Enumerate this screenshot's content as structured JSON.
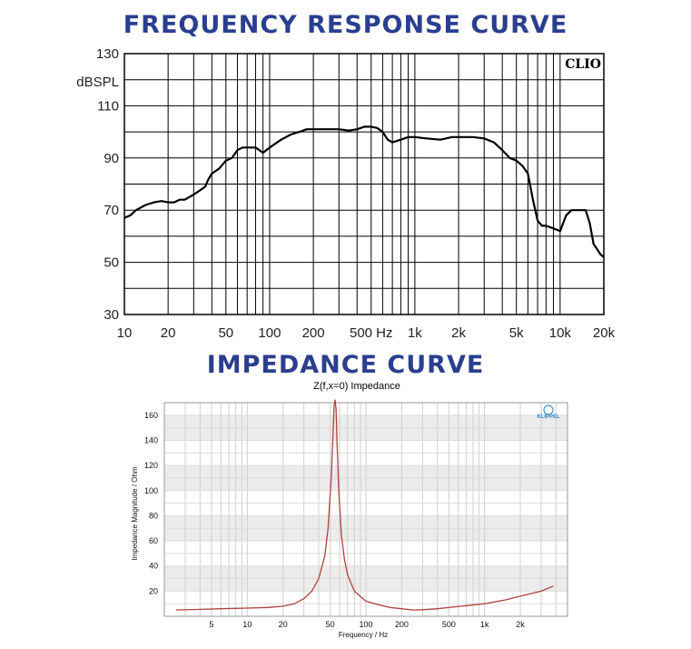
{
  "headings": {
    "frequency": "FREQUENCY RESPONSE CURVE",
    "impedance": "IMPEDANCE CURVE"
  },
  "colors": {
    "heading": "#2b3f8f",
    "freq_curve": "#000000",
    "imp_curve": "#b0413e",
    "imp_band": "#ececec"
  },
  "chart_data": [
    {
      "type": "line",
      "title": "",
      "ylabel": "dBSPL",
      "xlabel": "",
      "xscale": "log",
      "xlim": [
        10,
        20000
      ],
      "ylim": [
        30,
        130
      ],
      "grid": true,
      "badge": "CLIO",
      "x_ticks": [
        10,
        20,
        50,
        100,
        200,
        500,
        1000,
        2000,
        5000,
        10000,
        20000
      ],
      "x_tick_labels": [
        "10",
        "20",
        "50",
        "100",
        "200",
        "500 Hz",
        "1k",
        "2k",
        "5k",
        "10k",
        "20k"
      ],
      "y_ticks": [
        30,
        50,
        70,
        90,
        110,
        130
      ],
      "y_tick_labels": [
        "30",
        "50",
        "70",
        "90",
        "110",
        "130"
      ],
      "series": [
        {
          "name": "",
          "x": [
            10,
            11,
            12,
            14,
            16,
            18,
            20,
            22,
            24,
            26,
            28,
            30,
            32,
            34,
            36,
            38,
            40,
            45,
            50,
            55,
            60,
            65,
            70,
            75,
            80,
            85,
            90,
            100,
            120,
            140,
            160,
            180,
            200,
            250,
            300,
            350,
            400,
            450,
            500,
            550,
            600,
            650,
            700,
            800,
            900,
            1000,
            1200,
            1500,
            1800,
            2000,
            2500,
            3000,
            3500,
            4000,
            4500,
            5000,
            5500,
            6000,
            6500,
            7000,
            7500,
            8000,
            9000,
            10000,
            11000,
            12000,
            13000,
            14000,
            15000,
            16000,
            17000,
            18000,
            19000,
            20000
          ],
          "y": [
            67,
            68,
            70,
            72,
            73,
            73.5,
            73,
            73,
            74,
            74,
            75,
            76,
            77,
            78,
            79,
            82,
            84,
            86,
            89,
            90,
            93,
            94,
            94,
            94,
            94,
            93,
            92,
            94,
            97,
            99,
            100,
            101,
            101,
            101,
            101,
            100.5,
            101,
            102,
            102,
            101.5,
            100,
            97,
            96,
            97,
            98,
            98,
            97.5,
            97,
            98,
            98,
            98,
            97.5,
            96,
            93,
            90,
            89,
            87,
            84,
            74,
            66,
            64,
            64,
            63,
            62,
            68,
            70,
            70,
            70,
            70,
            65,
            57,
            55,
            53,
            52
          ]
        }
      ]
    },
    {
      "type": "line",
      "title": "Z(f,x=0) Impedance",
      "ylabel": "Impedance Magnitude / Ohm",
      "xlabel": "Frequency / Hz",
      "xscale": "log",
      "xlim": [
        2,
        5000
      ],
      "ylim": [
        0,
        170
      ],
      "grid": true,
      "badge": "KLIPPEL",
      "x_ticks": [
        5,
        10,
        20,
        50,
        100,
        200,
        500,
        1000,
        2000
      ],
      "x_tick_labels": [
        "5",
        "10",
        "20",
        "50",
        "100",
        "200",
        "500",
        "1k",
        "2k"
      ],
      "y_ticks": [
        20,
        40,
        60,
        80,
        100,
        120,
        140,
        160
      ],
      "y_tick_labels": [
        "20",
        "40",
        "60",
        "80",
        "100",
        "120",
        "140",
        "160"
      ],
      "series": [
        {
          "name": "",
          "x": [
            2.5,
            4,
            6,
            10,
            15,
            20,
            25,
            30,
            35,
            40,
            45,
            48,
            51,
            53,
            54,
            55,
            56,
            57,
            59,
            62,
            66,
            70,
            80,
            100,
            130,
            160,
            200,
            250,
            300,
            400,
            500,
            700,
            1000,
            1500,
            2000,
            3000,
            3800
          ],
          "y": [
            5,
            5.5,
            6,
            6.5,
            7,
            8,
            10,
            14,
            20,
            30,
            48,
            70,
            110,
            150,
            168,
            172,
            165,
            140,
            100,
            65,
            45,
            33,
            20,
            12,
            9,
            7,
            6,
            5,
            5.2,
            6,
            7,
            8.5,
            10,
            13,
            16,
            20,
            24
          ]
        }
      ]
    }
  ]
}
